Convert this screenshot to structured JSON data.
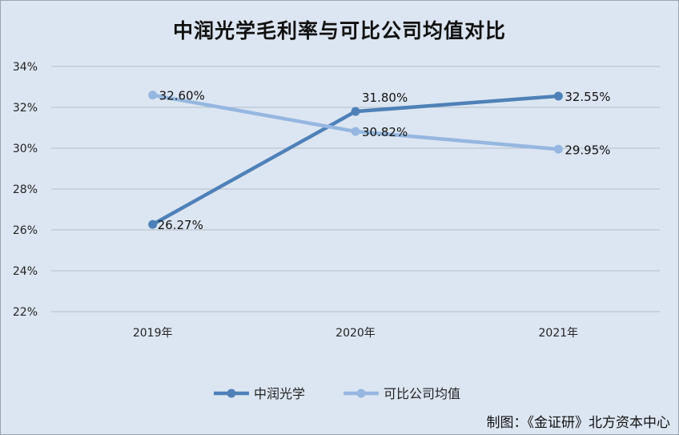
{
  "chart_data": {
    "type": "line",
    "title": "中润光学毛利率与可比公司均值对比",
    "categories": [
      "2019年",
      "2020年",
      "2021年"
    ],
    "series": [
      {
        "name": "中润光学",
        "values": [
          26.27,
          31.8,
          32.55
        ],
        "labels": [
          "26.27%",
          "31.80%",
          "32.55%"
        ],
        "color": "#4f81b8"
      },
      {
        "name": "可比公司均值",
        "values": [
          32.6,
          30.82,
          29.95
        ],
        "labels": [
          "32.60%",
          "30.82%",
          "29.95%"
        ],
        "color": "#95b7e0"
      }
    ],
    "yticks": [
      "22%",
      "24%",
      "26%",
      "28%",
      "30%",
      "32%",
      "34%"
    ],
    "ylim": [
      22,
      34
    ],
    "grid": true,
    "legend": "bottom"
  },
  "credit": "制图：《金证研》北方资本中心"
}
